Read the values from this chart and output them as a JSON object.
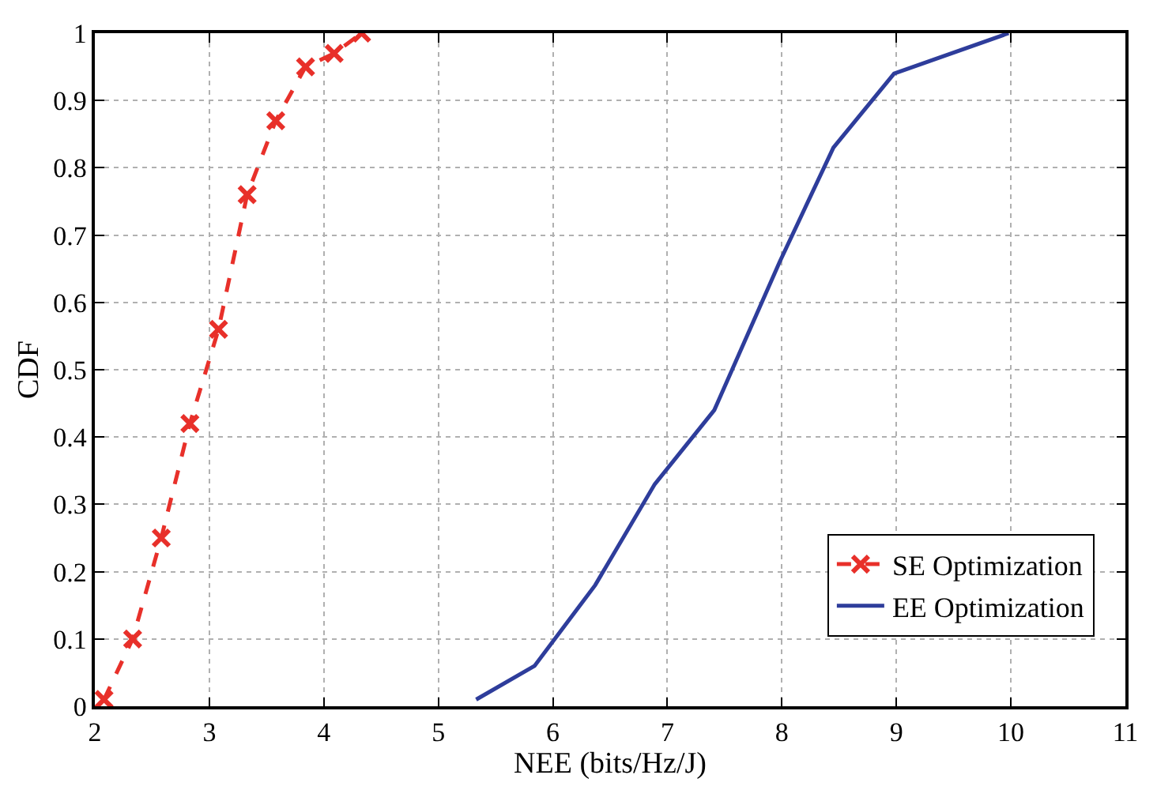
{
  "chart_data": {
    "type": "line",
    "xlabel": "NEE (bits/Hz/J)",
    "ylabel": "CDF",
    "xlim": [
      2,
      11
    ],
    "xticks": [
      2,
      3,
      4,
      5,
      6,
      7,
      8,
      9,
      10,
      11
    ],
    "ylim": [
      0,
      1
    ],
    "yticks": [
      0,
      0.1,
      0.2,
      0.3,
      0.4,
      0.5,
      0.6,
      0.7,
      0.8,
      0.9,
      1
    ],
    "grid": true,
    "legend": "bottom right",
    "series": [
      {
        "name": "SE Optimization",
        "color": "#e8302a",
        "marker": "cross",
        "line_style": "dashed",
        "x": [
          2.08,
          2.33,
          2.58,
          2.83,
          3.08,
          3.33,
          3.58,
          3.84,
          4.09,
          4.33
        ],
        "values": [
          0.01,
          0.1,
          0.25,
          0.42,
          0.56,
          0.76,
          0.87,
          0.95,
          0.97,
          1.0
        ]
      },
      {
        "name": "EE Optimization",
        "color": "#2e3d9b",
        "marker": "none",
        "line_style": "solid",
        "x": [
          5.33,
          5.84,
          6.37,
          6.89,
          7.41,
          7.98,
          8.45,
          8.98,
          9.98
        ],
        "values": [
          0.01,
          0.06,
          0.18,
          0.33,
          0.44,
          0.66,
          0.83,
          0.94,
          1.0
        ]
      }
    ]
  }
}
